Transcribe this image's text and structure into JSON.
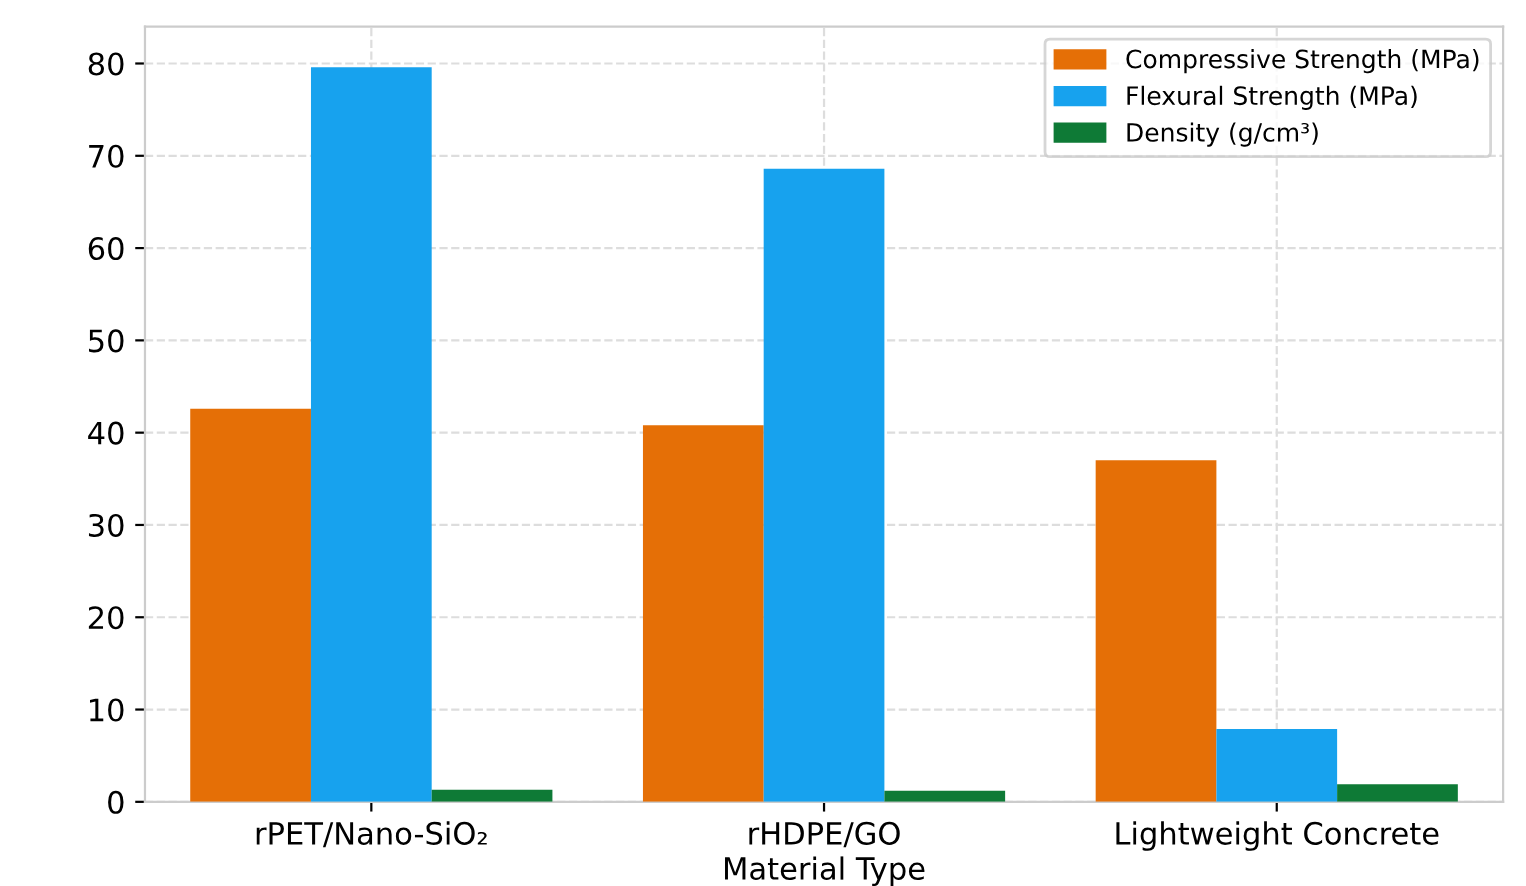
{
  "chart_data": {
    "type": "bar",
    "xlabel": "Material Type",
    "categories": [
      "rPET/Nano-SiO₂",
      "rHDPE/GO",
      "Lightweight Concrete"
    ],
    "series": [
      {
        "name": "Compressive Strength (MPa)",
        "color": "#e56f06",
        "values": [
          42.6,
          40.8,
          37.0
        ]
      },
      {
        "name": "Flexural Strength (MPa)",
        "color": "#17a2ee",
        "values": [
          79.6,
          68.6,
          7.9
        ]
      },
      {
        "name": "Density (g/cm³)",
        "color": "#0e7a36",
        "values": [
          1.3,
          1.2,
          1.9
        ]
      }
    ],
    "ylim": [
      0,
      84
    ],
    "yticks": [
      0,
      10,
      20,
      30,
      40,
      50,
      60,
      70,
      80
    ],
    "grid": true,
    "legend": "top right"
  }
}
